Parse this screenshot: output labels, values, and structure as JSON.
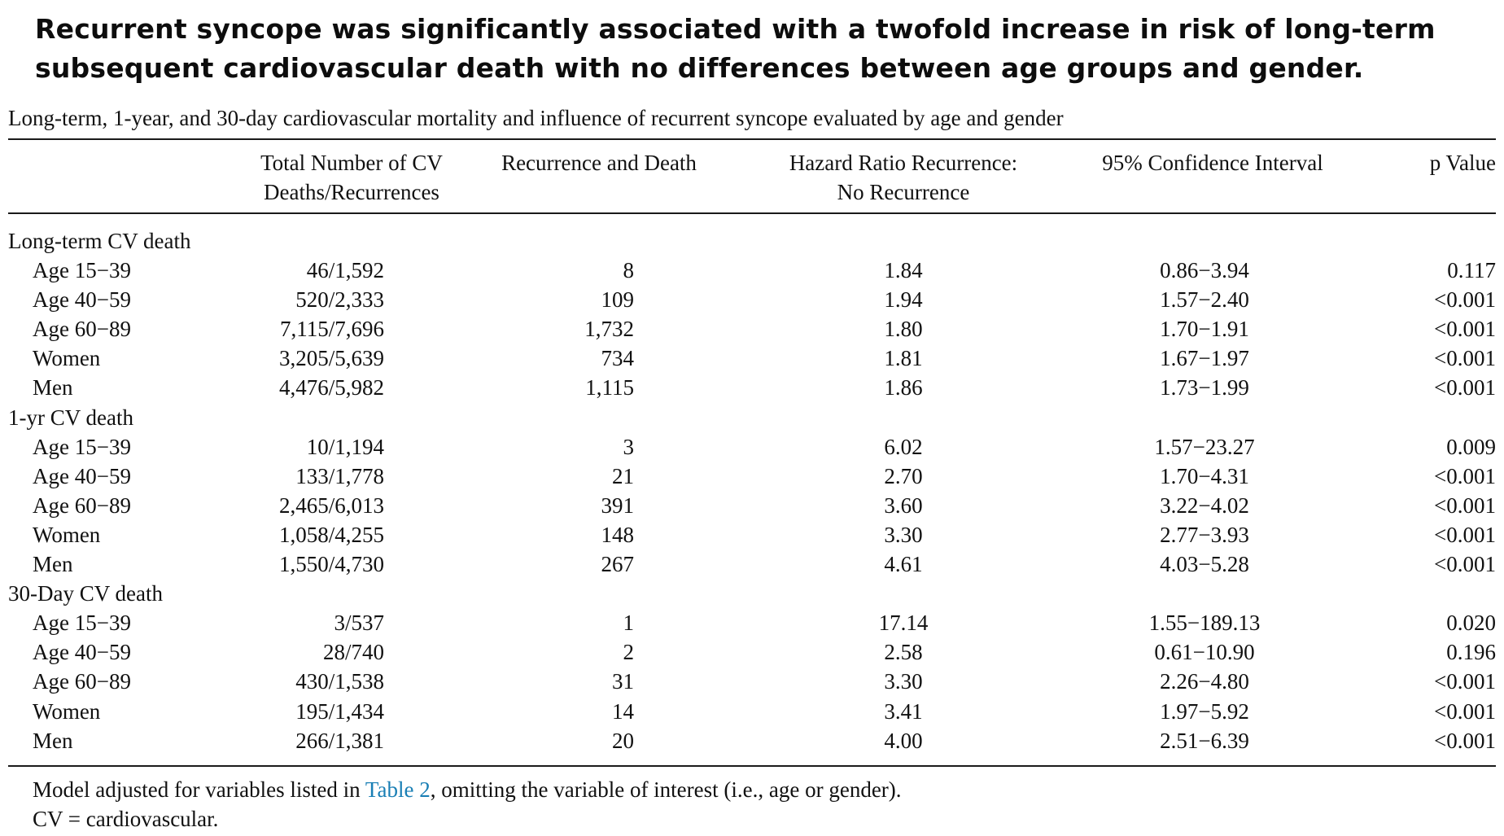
{
  "headline": "Recurrent syncope was significantly associated with a twofold increase in risk of long-term subsequent cardiovascular death with no differences between age groups and gender.",
  "caption": "Long-term, 1-year, and 30-day cardiovascular mortality and influence of recurrent syncope evaluated by age and gender",
  "columns": {
    "total": [
      "Total Number of CV",
      "Deaths/Recurrences"
    ],
    "recurrence": [
      "Recurrence and Death"
    ],
    "hazard": [
      "Hazard Ratio Recurrence:",
      "No Recurrence"
    ],
    "ci": [
      "95% Confidence Interval"
    ],
    "p": [
      "p Value"
    ]
  },
  "rows": [
    {
      "kind": "section",
      "label": "Long-term CV death"
    },
    {
      "kind": "sub",
      "label": "Age 15−39",
      "total": "46/1,592",
      "recurrence": "8",
      "hazard": "1.84",
      "ci": "0.86−3.94",
      "p": "0.117"
    },
    {
      "kind": "sub",
      "label": "Age 40−59",
      "total": "520/2,333",
      "recurrence": "109",
      "hazard": "1.94",
      "ci": "1.57−2.40",
      "p": "<0.001"
    },
    {
      "kind": "sub",
      "label": "Age 60−89",
      "total": "7,115/7,696",
      "recurrence": "1,732",
      "hazard": "1.80",
      "ci": "1.70−1.91",
      "p": "<0.001"
    },
    {
      "kind": "sub",
      "label": "Women",
      "total": "3,205/5,639",
      "recurrence": "734",
      "hazard": "1.81",
      "ci": "1.67−1.97",
      "p": "<0.001"
    },
    {
      "kind": "sub",
      "label": "Men",
      "total": "4,476/5,982",
      "recurrence": "1,115",
      "hazard": "1.86",
      "ci": "1.73−1.99",
      "p": "<0.001"
    },
    {
      "kind": "section",
      "label": "1-yr CV death"
    },
    {
      "kind": "sub",
      "label": "Age 15−39",
      "total": "10/1,194",
      "recurrence": "3",
      "hazard": "6.02",
      "ci": "1.57−23.27",
      "p": "0.009"
    },
    {
      "kind": "sub",
      "label": "Age 40−59",
      "total": "133/1,778",
      "recurrence": "21",
      "hazard": "2.70",
      "ci": "1.70−4.31",
      "p": "<0.001"
    },
    {
      "kind": "sub",
      "label": "Age 60−89",
      "total": "2,465/6,013",
      "recurrence": "391",
      "hazard": "3.60",
      "ci": "3.22−4.02",
      "p": "<0.001"
    },
    {
      "kind": "sub",
      "label": "Women",
      "total": "1,058/4,255",
      "recurrence": "148",
      "hazard": "3.30",
      "ci": "2.77−3.93",
      "p": "<0.001"
    },
    {
      "kind": "sub",
      "label": "Men",
      "total": "1,550/4,730",
      "recurrence": "267",
      "hazard": "4.61",
      "ci": "4.03−5.28",
      "p": "<0.001"
    },
    {
      "kind": "section",
      "label": "30-Day CV death"
    },
    {
      "kind": "sub",
      "label": "Age 15−39",
      "total": "3/537",
      "recurrence": "1",
      "hazard": "17.14",
      "ci": "1.55−189.13",
      "p": "0.020"
    },
    {
      "kind": "sub",
      "label": "Age 40−59",
      "total": "28/740",
      "recurrence": "2",
      "hazard": "2.58",
      "ci": "0.61−10.90",
      "p": "0.196"
    },
    {
      "kind": "sub",
      "label": "Age 60−89",
      "total": "430/1,538",
      "recurrence": "31",
      "hazard": "3.30",
      "ci": "2.26−4.80",
      "p": "<0.001"
    },
    {
      "kind": "sub",
      "label": "Women",
      "total": "195/1,434",
      "recurrence": "14",
      "hazard": "3.41",
      "ci": "1.97−5.92",
      "p": "<0.001"
    },
    {
      "kind": "sub",
      "label": "Men",
      "total": "266/1,381",
      "recurrence": "20",
      "hazard": "4.00",
      "ci": "2.51−6.39",
      "p": "<0.001"
    }
  ],
  "footnote": {
    "line1_before": "Model adjusted for variables listed in ",
    "line1_link": "Table 2",
    "line1_after": ", omitting the variable of interest (i.e., age or gender).",
    "line2": "CV = cardiovascular."
  },
  "colors": {
    "link": "#1a7fb5",
    "text": "#111111"
  }
}
